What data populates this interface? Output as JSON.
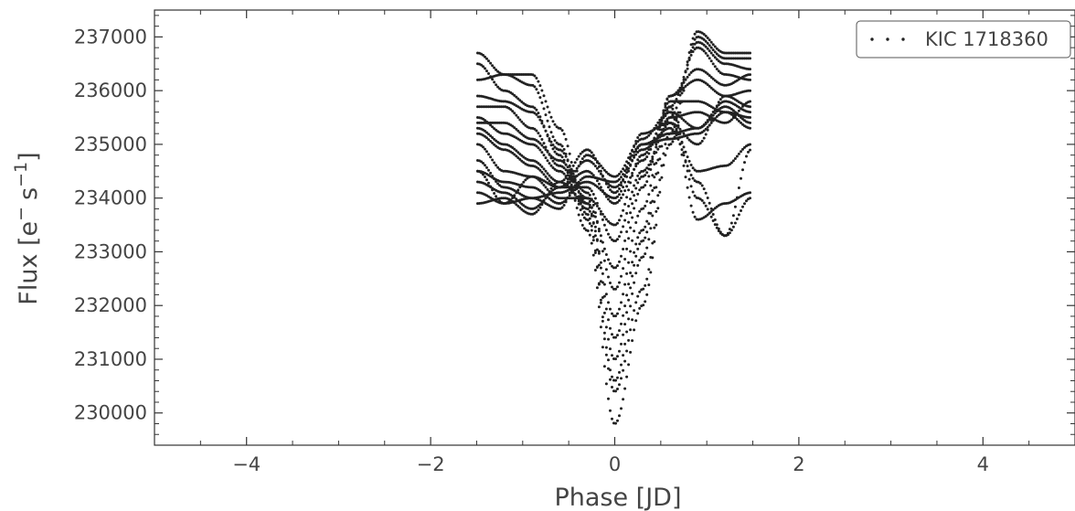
{
  "chart_data": {
    "type": "scatter",
    "title": "",
    "xlabel": "Phase [JD]",
    "ylabel_main": "Flux [e",
    "ylabel_sup1": "−",
    "ylabel_mid": "s",
    "ylabel_sup2": "−1",
    "ylabel_end": "]",
    "xlim": [
      -5.0,
      5.0
    ],
    "ylim": [
      229400,
      237500
    ],
    "xticks": [
      -4,
      -2,
      0,
      2,
      4
    ],
    "xtick_labels": [
      "−4",
      "−2",
      "0",
      "2",
      "4"
    ],
    "yticks": [
      230000,
      231000,
      232000,
      233000,
      234000,
      235000,
      236000,
      237000
    ],
    "ytick_labels": [
      "230000",
      "231000",
      "232000",
      "233000",
      "234000",
      "235000",
      "236000",
      "237000"
    ],
    "legend": {
      "placement": "top-right",
      "label": "KIC 1718360"
    },
    "marker_color": "#222222",
    "series": [
      {
        "name": "KIC 1718360",
        "curve_knots_x": [
          -1.49,
          -1.2,
          -0.9,
          -0.6,
          -0.3,
          0.0,
          0.3,
          0.6,
          0.9,
          1.2,
          1.48
        ],
        "curves": [
          [
            236700,
            236300,
            236300,
            235300,
            233700,
            230400,
            232300,
            235200,
            237100,
            236700,
            236700
          ],
          [
            236500,
            236000,
            235700,
            234800,
            233400,
            229800,
            232000,
            235000,
            237000,
            236600,
            236600
          ],
          [
            236200,
            236300,
            236100,
            235000,
            233600,
            230600,
            232900,
            235500,
            236900,
            236500,
            236400
          ],
          [
            235900,
            235800,
            235600,
            234900,
            233900,
            231000,
            233200,
            235700,
            236800,
            236300,
            236200
          ],
          [
            235700,
            235700,
            235300,
            234600,
            234000,
            231400,
            233400,
            235900,
            236400,
            236100,
            236300
          ],
          [
            235500,
            235200,
            235000,
            234500,
            233800,
            231800,
            233800,
            235900,
            236200,
            235900,
            235700
          ],
          [
            235400,
            235400,
            235100,
            234700,
            234100,
            232300,
            234200,
            235800,
            235800,
            235600,
            235500
          ],
          [
            235300,
            235000,
            234700,
            234300,
            233900,
            232700,
            234400,
            235500,
            235600,
            235400,
            235800
          ],
          [
            235200,
            234900,
            234600,
            234200,
            234200,
            233200,
            234500,
            235400,
            235000,
            235900,
            236000
          ],
          [
            235000,
            234500,
            234400,
            234000,
            234000,
            233500,
            234800,
            235600,
            235300,
            235700,
            235400
          ],
          [
            234700,
            234200,
            234000,
            234100,
            234300,
            234000,
            235000,
            235200,
            235300,
            235800,
            235600
          ],
          [
            234500,
            234300,
            234200,
            233900,
            234400,
            234300,
            235000,
            235100,
            235200,
            235600,
            235300
          ],
          [
            234300,
            234100,
            233800,
            234200,
            234700,
            234200,
            234900,
            235300,
            234300,
            233300,
            234000
          ],
          [
            234100,
            233900,
            234000,
            233800,
            234800,
            234400,
            235100,
            235600,
            233600,
            233900,
            234100
          ],
          [
            233900,
            234000,
            233700,
            234300,
            234900,
            234100,
            235200,
            235400,
            234500,
            234600,
            235000
          ],
          [
            234500,
            233900,
            234400,
            234200,
            234500,
            233900,
            234700,
            235700,
            234000,
            233300,
            234900
          ]
        ]
      }
    ]
  }
}
